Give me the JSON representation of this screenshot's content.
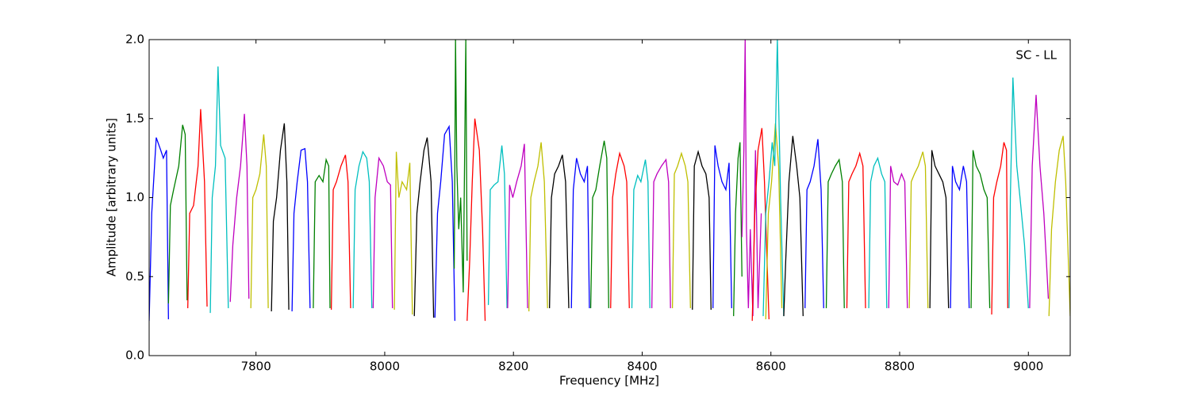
{
  "chart_data": {
    "type": "line",
    "xlabel": "Frequency [MHz]",
    "ylabel": "Amplitude [arbitrary units]",
    "annotation": "SC - LL",
    "xlim": [
      7634,
      9065
    ],
    "ylim": [
      0,
      2
    ],
    "xticks": [
      7800,
      8000,
      8200,
      8400,
      8600,
      8800,
      9000
    ],
    "yticks": [
      {
        "value": 0,
        "label": "0.0"
      },
      {
        "value": 0.5,
        "label": "0.5"
      },
      {
        "value": 1,
        "label": "1.0"
      },
      {
        "value": 1.5,
        "label": "1.5"
      },
      {
        "value": 2,
        "label": "2.0"
      }
    ],
    "series": [
      {
        "color": "#0000ff",
        "x": [
          7634,
          7638,
          7645,
          7652,
          7656,
          7661,
          7664
        ],
        "values": [
          0.22,
          0.9,
          1.38,
          1.3,
          1.25,
          1.3,
          0.23
        ]
      },
      {
        "color": "#008000",
        "x": [
          7664,
          7667,
          7672,
          7680,
          7686,
          7690,
          7693
        ],
        "values": [
          0.33,
          0.95,
          1.05,
          1.2,
          1.46,
          1.4,
          0.35
        ]
      },
      {
        "color": "#ff0000",
        "x": [
          7694,
          7697,
          7703,
          7710,
          7714,
          7720,
          7724
        ],
        "values": [
          0.3,
          0.9,
          0.95,
          1.2,
          1.56,
          1.1,
          0.31
        ]
      },
      {
        "color": "#00bfbf",
        "x": [
          7729,
          7732,
          7737,
          7741,
          7745,
          7752,
          7757
        ],
        "values": [
          0.27,
          1.0,
          1.2,
          1.83,
          1.33,
          1.25,
          0.3
        ]
      },
      {
        "color": "#bf00bf",
        "x": [
          7760,
          7764,
          7770,
          7776,
          7782,
          7786,
          7789
        ],
        "values": [
          0.34,
          0.7,
          1.0,
          1.2,
          1.53,
          1.2,
          0.36
        ]
      },
      {
        "color": "#bfbf00",
        "x": [
          7792,
          7795,
          7800,
          7806,
          7812,
          7816,
          7819
        ],
        "values": [
          0.3,
          1.0,
          1.05,
          1.15,
          1.4,
          1.2,
          0.3
        ]
      },
      {
        "color": "#000000",
        "x": [
          7824,
          7827,
          7832,
          7838,
          7844,
          7848,
          7851
        ],
        "values": [
          0.28,
          0.85,
          1.0,
          1.3,
          1.47,
          1.1,
          0.29
        ]
      },
      {
        "color": "#0000ff",
        "x": [
          7856,
          7859,
          7864,
          7870,
          7876,
          7880,
          7884
        ],
        "values": [
          0.28,
          0.9,
          1.1,
          1.3,
          1.31,
          1.1,
          0.3
        ]
      },
      {
        "color": "#008000",
        "x": [
          7889,
          7892,
          7898,
          7904,
          7909,
          7913,
          7915
        ],
        "values": [
          0.3,
          1.1,
          1.14,
          1.1,
          1.24,
          1.2,
          0.3
        ]
      },
      {
        "color": "#ff0000",
        "x": [
          7917,
          7920,
          7925,
          7932,
          7939,
          7943,
          7947
        ],
        "values": [
          0.29,
          1.05,
          1.1,
          1.2,
          1.27,
          1.1,
          0.3
        ]
      },
      {
        "color": "#00bfbf",
        "x": [
          7951,
          7954,
          7960,
          7966,
          7972,
          7976,
          7980
        ],
        "values": [
          0.3,
          1.05,
          1.2,
          1.29,
          1.25,
          1.1,
          0.3
        ]
      },
      {
        "color": "#bf00bf",
        "x": [
          7982,
          7985,
          7991,
          7998,
          8004,
          8009,
          8012
        ],
        "values": [
          0.3,
          1.0,
          1.25,
          1.2,
          1.1,
          1.08,
          0.3
        ]
      },
      {
        "color": "#bfbf00",
        "x": [
          8015,
          8018,
          8022,
          8027,
          8034,
          8039,
          8043
        ],
        "values": [
          0.29,
          1.29,
          1.0,
          1.1,
          1.05,
          1.22,
          0.26
        ]
      },
      {
        "color": "#000000",
        "x": [
          8046,
          8050,
          8055,
          8061,
          8066,
          8072,
          8076
        ],
        "values": [
          0.25,
          0.9,
          1.1,
          1.3,
          1.38,
          1.1,
          0.24
        ]
      },
      {
        "color": "#0000ff",
        "x": [
          8078,
          8082,
          8087,
          8093,
          8100,
          8105,
          8109
        ],
        "values": [
          0.24,
          0.9,
          1.1,
          1.4,
          1.45,
          1.1,
          0.22
        ]
      },
      {
        "color": "#008000",
        "x": [
          8108,
          8110,
          8112,
          8115,
          8118,
          8122,
          8126,
          8128
        ],
        "values": [
          0.55,
          2.0,
          1.2,
          0.8,
          1.0,
          0.4,
          2.0,
          0.6
        ]
      },
      {
        "color": "#ff0000",
        "x": [
          8128,
          8132,
          8136,
          8140,
          8147,
          8152,
          8156
        ],
        "values": [
          0.22,
          0.6,
          1.1,
          1.5,
          1.3,
          0.8,
          0.22
        ]
      },
      {
        "color": "#00bfbf",
        "x": [
          8161,
          8164,
          8170,
          8176,
          8182,
          8186,
          8190
        ],
        "values": [
          0.32,
          1.05,
          1.08,
          1.1,
          1.33,
          1.15,
          0.3
        ]
      },
      {
        "color": "#bf00bf",
        "x": [
          8191,
          8194,
          8199,
          8205,
          8212,
          8217,
          8222
        ],
        "values": [
          0.3,
          1.08,
          1.0,
          1.1,
          1.2,
          1.34,
          0.3
        ]
      },
      {
        "color": "#bfbf00",
        "x": [
          8224,
          8227,
          8232,
          8238,
          8243,
          8248,
          8253
        ],
        "values": [
          0.28,
          1.0,
          1.1,
          1.2,
          1.35,
          1.1,
          0.3
        ]
      },
      {
        "color": "#000000",
        "x": [
          8256,
          8259,
          8264,
          8270,
          8276,
          8281,
          8286
        ],
        "values": [
          0.3,
          1.0,
          1.15,
          1.2,
          1.27,
          1.1,
          0.3
        ]
      },
      {
        "color": "#0000ff",
        "x": [
          8290,
          8293,
          8298,
          8304,
          8310,
          8315,
          8318
        ],
        "values": [
          0.3,
          1.05,
          1.25,
          1.15,
          1.1,
          1.2,
          0.3
        ]
      },
      {
        "color": "#008000",
        "x": [
          8320,
          8323,
          8328,
          8334,
          8341,
          8345,
          8348
        ],
        "values": [
          0.3,
          1.0,
          1.05,
          1.2,
          1.36,
          1.25,
          0.3
        ]
      },
      {
        "color": "#ff0000",
        "x": [
          8351,
          8354,
          8359,
          8365,
          8372,
          8376,
          8380
        ],
        "values": [
          0.3,
          1.0,
          1.15,
          1.28,
          1.2,
          1.1,
          0.3
        ]
      },
      {
        "color": "#00bfbf",
        "x": [
          8384,
          8387,
          8393,
          8398,
          8405,
          8409,
          8412
        ],
        "values": [
          0.3,
          1.05,
          1.14,
          1.1,
          1.24,
          1.1,
          0.3
        ]
      },
      {
        "color": "#bf00bf",
        "x": [
          8415,
          8418,
          8423,
          8430,
          8437,
          8441,
          8444
        ],
        "values": [
          0.3,
          1.1,
          1.15,
          1.2,
          1.24,
          1.1,
          0.3
        ]
      },
      {
        "color": "#bfbf00",
        "x": [
          8447,
          8450,
          8455,
          8461,
          8467,
          8471,
          8475
        ],
        "values": [
          0.3,
          1.15,
          1.2,
          1.28,
          1.2,
          1.1,
          0.3
        ]
      },
      {
        "color": "#000000",
        "x": [
          8478,
          8481,
          8487,
          8493,
          8499,
          8504,
          8507
        ],
        "values": [
          0.29,
          1.2,
          1.29,
          1.2,
          1.15,
          1.0,
          0.29
        ]
      },
      {
        "color": "#0000ff",
        "x": [
          8510,
          8513,
          8518,
          8524,
          8530,
          8535,
          8539
        ],
        "values": [
          0.3,
          1.33,
          1.2,
          1.1,
          1.05,
          1.22,
          0.3
        ]
      },
      {
        "color": "#008000",
        "x": [
          8542,
          8545,
          8549,
          8552,
          8555
        ],
        "values": [
          0.25,
          0.9,
          1.25,
          1.35,
          0.5
        ]
      },
      {
        "color": "#bf00bf",
        "x": [
          8555,
          8558,
          8560,
          8562,
          8565,
          8568,
          8572,
          8576,
          8580,
          8585
        ],
        "values": [
          0.75,
          1.3,
          2.0,
          0.8,
          0.3,
          0.8,
          0.25,
          1.3,
          0.3,
          0.9
        ]
      },
      {
        "color": "#ff0000",
        "x": [
          8571,
          8575,
          8580,
          8586,
          8590,
          8594,
          8597
        ],
        "values": [
          0.22,
          0.9,
          1.3,
          1.44,
          1.1,
          0.6,
          0.23
        ]
      },
      {
        "color": "#bfbf00",
        "x": [
          8592,
          8596,
          8601,
          8607,
          8612,
          8617
        ],
        "values": [
          0.23,
          0.9,
          1.1,
          1.47,
          1.2,
          0.3
        ]
      },
      {
        "color": "#00bfbf",
        "x": [
          8588,
          8592,
          8597,
          8602,
          8606,
          8610,
          8615,
          8620
        ],
        "values": [
          0.25,
          0.9,
          1.1,
          1.35,
          1.2,
          2.0,
          1.0,
          0.25
        ]
      },
      {
        "color": "#000000",
        "x": [
          8620,
          8623,
          8628,
          8634,
          8640,
          8645,
          8650
        ],
        "values": [
          0.25,
          0.6,
          1.1,
          1.39,
          1.2,
          1.0,
          0.25
        ]
      },
      {
        "color": "#0000ff",
        "x": [
          8653,
          8656,
          8661,
          8667,
          8673,
          8678,
          8682
        ],
        "values": [
          0.3,
          1.05,
          1.1,
          1.2,
          1.37,
          1.05,
          0.3
        ]
      },
      {
        "color": "#008000",
        "x": [
          8686,
          8689,
          8694,
          8700,
          8706,
          8711,
          8714
        ],
        "values": [
          0.3,
          1.1,
          1.15,
          1.2,
          1.24,
          1.1,
          0.3
        ]
      },
      {
        "color": "#ff0000",
        "x": [
          8718,
          8721,
          8726,
          8732,
          8738,
          8743,
          8747
        ],
        "values": [
          0.3,
          1.1,
          1.15,
          1.2,
          1.28,
          1.2,
          0.3
        ]
      },
      {
        "color": "#00bfbf",
        "x": [
          8752,
          8755,
          8760,
          8766,
          8772,
          8777,
          8780
        ],
        "values": [
          0.3,
          1.1,
          1.2,
          1.25,
          1.15,
          1.1,
          0.3
        ]
      },
      {
        "color": "#bf00bf",
        "x": [
          8783,
          8786,
          8791,
          8797,
          8803,
          8808,
          8812
        ],
        "values": [
          0.3,
          1.2,
          1.1,
          1.08,
          1.15,
          1.1,
          0.3
        ]
      },
      {
        "color": "#bfbf00",
        "x": [
          8815,
          8818,
          8823,
          8829,
          8836,
          8840,
          8844
        ],
        "values": [
          0.3,
          1.1,
          1.15,
          1.2,
          1.29,
          1.2,
          0.3
        ]
      },
      {
        "color": "#000000",
        "x": [
          8847,
          8850,
          8855,
          8861,
          8867,
          8872,
          8876
        ],
        "values": [
          0.3,
          1.3,
          1.2,
          1.15,
          1.1,
          1.0,
          0.3
        ]
      },
      {
        "color": "#0000ff",
        "x": [
          8879,
          8882,
          8887,
          8893,
          8899,
          8904,
          8908
        ],
        "values": [
          0.3,
          1.2,
          1.1,
          1.05,
          1.2,
          1.1,
          0.3
        ]
      },
      {
        "color": "#008000",
        "x": [
          8911,
          8914,
          8919,
          8925,
          8931,
          8936,
          8940
        ],
        "values": [
          0.3,
          1.3,
          1.2,
          1.15,
          1.05,
          1.0,
          0.3
        ]
      },
      {
        "color": "#ff0000",
        "x": [
          8943,
          8946,
          8951,
          8957,
          8962,
          8966,
          8968
        ],
        "values": [
          0.26,
          1.0,
          1.1,
          1.2,
          1.35,
          1.3,
          0.3
        ]
      },
      {
        "color": "#00bfbf",
        "x": [
          8970,
          8972,
          8976,
          8982,
          8987,
          8994,
          9000
        ],
        "values": [
          0.3,
          1.0,
          1.76,
          1.2,
          1.0,
          0.7,
          0.3
        ]
      },
      {
        "color": "#bf00bf",
        "x": [
          9002,
          9006,
          9012,
          9018,
          9024,
          9028,
          9031
        ],
        "values": [
          0.3,
          1.2,
          1.65,
          1.2,
          0.9,
          0.6,
          0.36
        ]
      },
      {
        "color": "#bfbf00",
        "x": [
          9032,
          9036,
          9042,
          9048,
          9054,
          9058,
          9065
        ],
        "values": [
          0.25,
          0.8,
          1.1,
          1.3,
          1.39,
          1.1,
          0.25
        ]
      }
    ]
  }
}
